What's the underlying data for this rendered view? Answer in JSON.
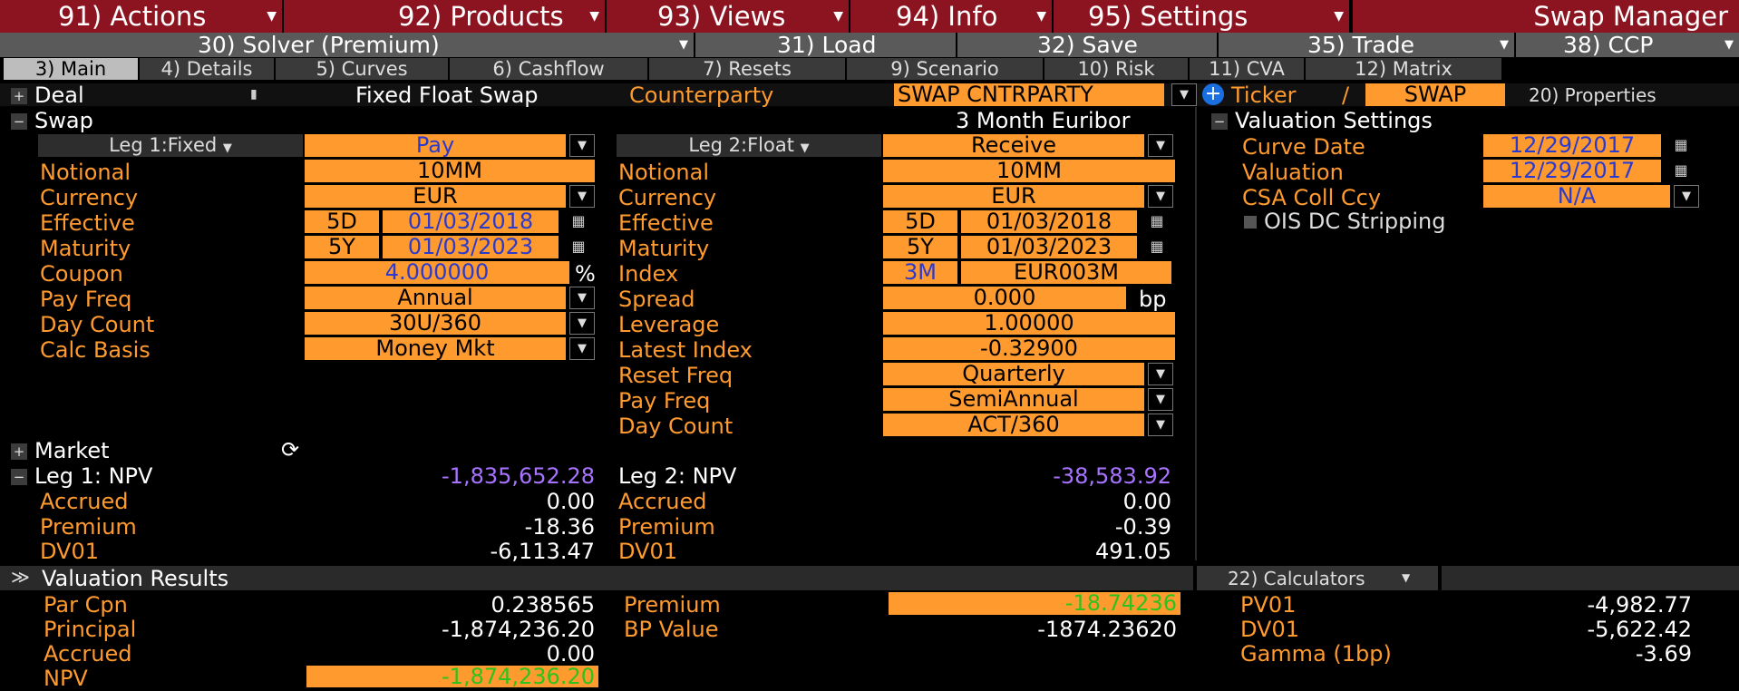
{
  "menu": {
    "actions": "91) Actions",
    "products": "92) Products",
    "views": "93) Views",
    "info": "94) Info",
    "settings": "95) Settings",
    "title": "Swap Manager"
  },
  "toolbar": {
    "solver": "30) Solver (Premium)",
    "load": "31) Load",
    "save": "32) Save",
    "trade": "35) Trade",
    "ccp": "38) CCP"
  },
  "tabs": [
    "3) Main",
    "4) Details",
    "5) Curves",
    "6) Cashflow",
    "7) Resets",
    "9) Scenario",
    "10) Risk",
    "11) CVA",
    "12) Matrix"
  ],
  "deal": {
    "label": "Deal",
    "type": "Fixed Float Swap",
    "counterparty_label": "Counterparty",
    "counterparty": "SWAP CNTRPARTY",
    "ticker_label": "Ticker",
    "slash": "/",
    "ticker": "SWAP",
    "properties": "20) Properties"
  },
  "swap": {
    "label": "Swap",
    "index_name": "3 Month Euribor"
  },
  "leg1": {
    "header": "Leg 1:Fixed",
    "direction": "Pay",
    "notional_label": "Notional",
    "notional": "10MM",
    "currency_label": "Currency",
    "currency": "EUR",
    "effective_label": "Effective",
    "effective_tenor": "5D",
    "effective_date": "01/03/2018",
    "maturity_label": "Maturity",
    "maturity_tenor": "5Y",
    "maturity_date": "01/03/2023",
    "coupon_label": "Coupon",
    "coupon": "4.000000",
    "coupon_unit": "%",
    "payfreq_label": "Pay Freq",
    "payfreq": "Annual",
    "daycount_label": "Day Count",
    "daycount": "30U/360",
    "calcbasis_label": "Calc Basis",
    "calcbasis": "Money Mkt"
  },
  "leg2": {
    "header": "Leg 2:Float",
    "direction": "Receive",
    "notional_label": "Notional",
    "notional": "10MM",
    "currency_label": "Currency",
    "currency": "EUR",
    "effective_label": "Effective",
    "effective_tenor": "5D",
    "effective_date": "01/03/2018",
    "maturity_label": "Maturity",
    "maturity_tenor": "5Y",
    "maturity_date": "01/03/2023",
    "index_label": "Index",
    "index_tenor": "3M",
    "index": "EUR003M",
    "spread_label": "Spread",
    "spread": "0.000",
    "spread_unit": "bp",
    "leverage_label": "Leverage",
    "leverage": "1.00000",
    "latest_label": "Latest Index",
    "latest": "-0.32900",
    "resetfreq_label": "Reset Freq",
    "resetfreq": "Quarterly",
    "payfreq_label": "Pay Freq",
    "payfreq": "SemiAnnual",
    "daycount_label": "Day Count",
    "daycount": "ACT/360"
  },
  "valuation_settings": {
    "label": "Valuation Settings",
    "curve_date_label": "Curve Date",
    "curve_date": "12/29/2017",
    "valuation_label": "Valuation",
    "valuation": "12/29/2017",
    "csa_label": "CSA Coll Ccy",
    "csa": "N/A",
    "ois_label": "OIS DC Stripping"
  },
  "market": {
    "label": "Market",
    "leg1_npv_label": "Leg 1: NPV",
    "leg1_npv": "-1,835,652.28",
    "leg1_accrued_label": "Accrued",
    "leg1_accrued": "0.00",
    "leg1_premium_label": "Premium",
    "leg1_premium": "-18.36",
    "leg1_dv01_label": "DV01",
    "leg1_dv01": "-6,113.47",
    "leg2_npv_label": "Leg 2: NPV",
    "leg2_npv": "-38,583.92",
    "leg2_accrued_label": "Accrued",
    "leg2_accrued": "0.00",
    "leg2_premium_label": "Premium",
    "leg2_premium": "-0.39",
    "leg2_dv01_label": "DV01",
    "leg2_dv01": "491.05"
  },
  "results": {
    "label": "Valuation Results",
    "calculators": "22) Calculators",
    "parcpn_label": "Par Cpn",
    "parcpn": "0.238565",
    "principal_label": "Principal",
    "principal": "-1,874,236.20",
    "accrued_label": "Accrued",
    "accrued": "0.00",
    "npv_label": "NPV",
    "npv": "-1,874,236.20",
    "premium_label": "Premium",
    "premium": "-18.74236",
    "bpvalue_label": "BP Value",
    "bpvalue": "-1874.23620",
    "pv01_label": "PV01",
    "pv01": "-4,982.77",
    "dv01_label": "DV01",
    "dv01": "-5,622.42",
    "gamma_label": "Gamma (1bp)",
    "gamma": "-3.69"
  },
  "colors": {
    "menu_red": "#8c1320",
    "field_orange": "#ff9a2e",
    "label_orange": "#ff9a2e",
    "npv_purple": "#a873ff",
    "value_green": "#2ec21e",
    "date_blue": "#2a3ad0"
  }
}
